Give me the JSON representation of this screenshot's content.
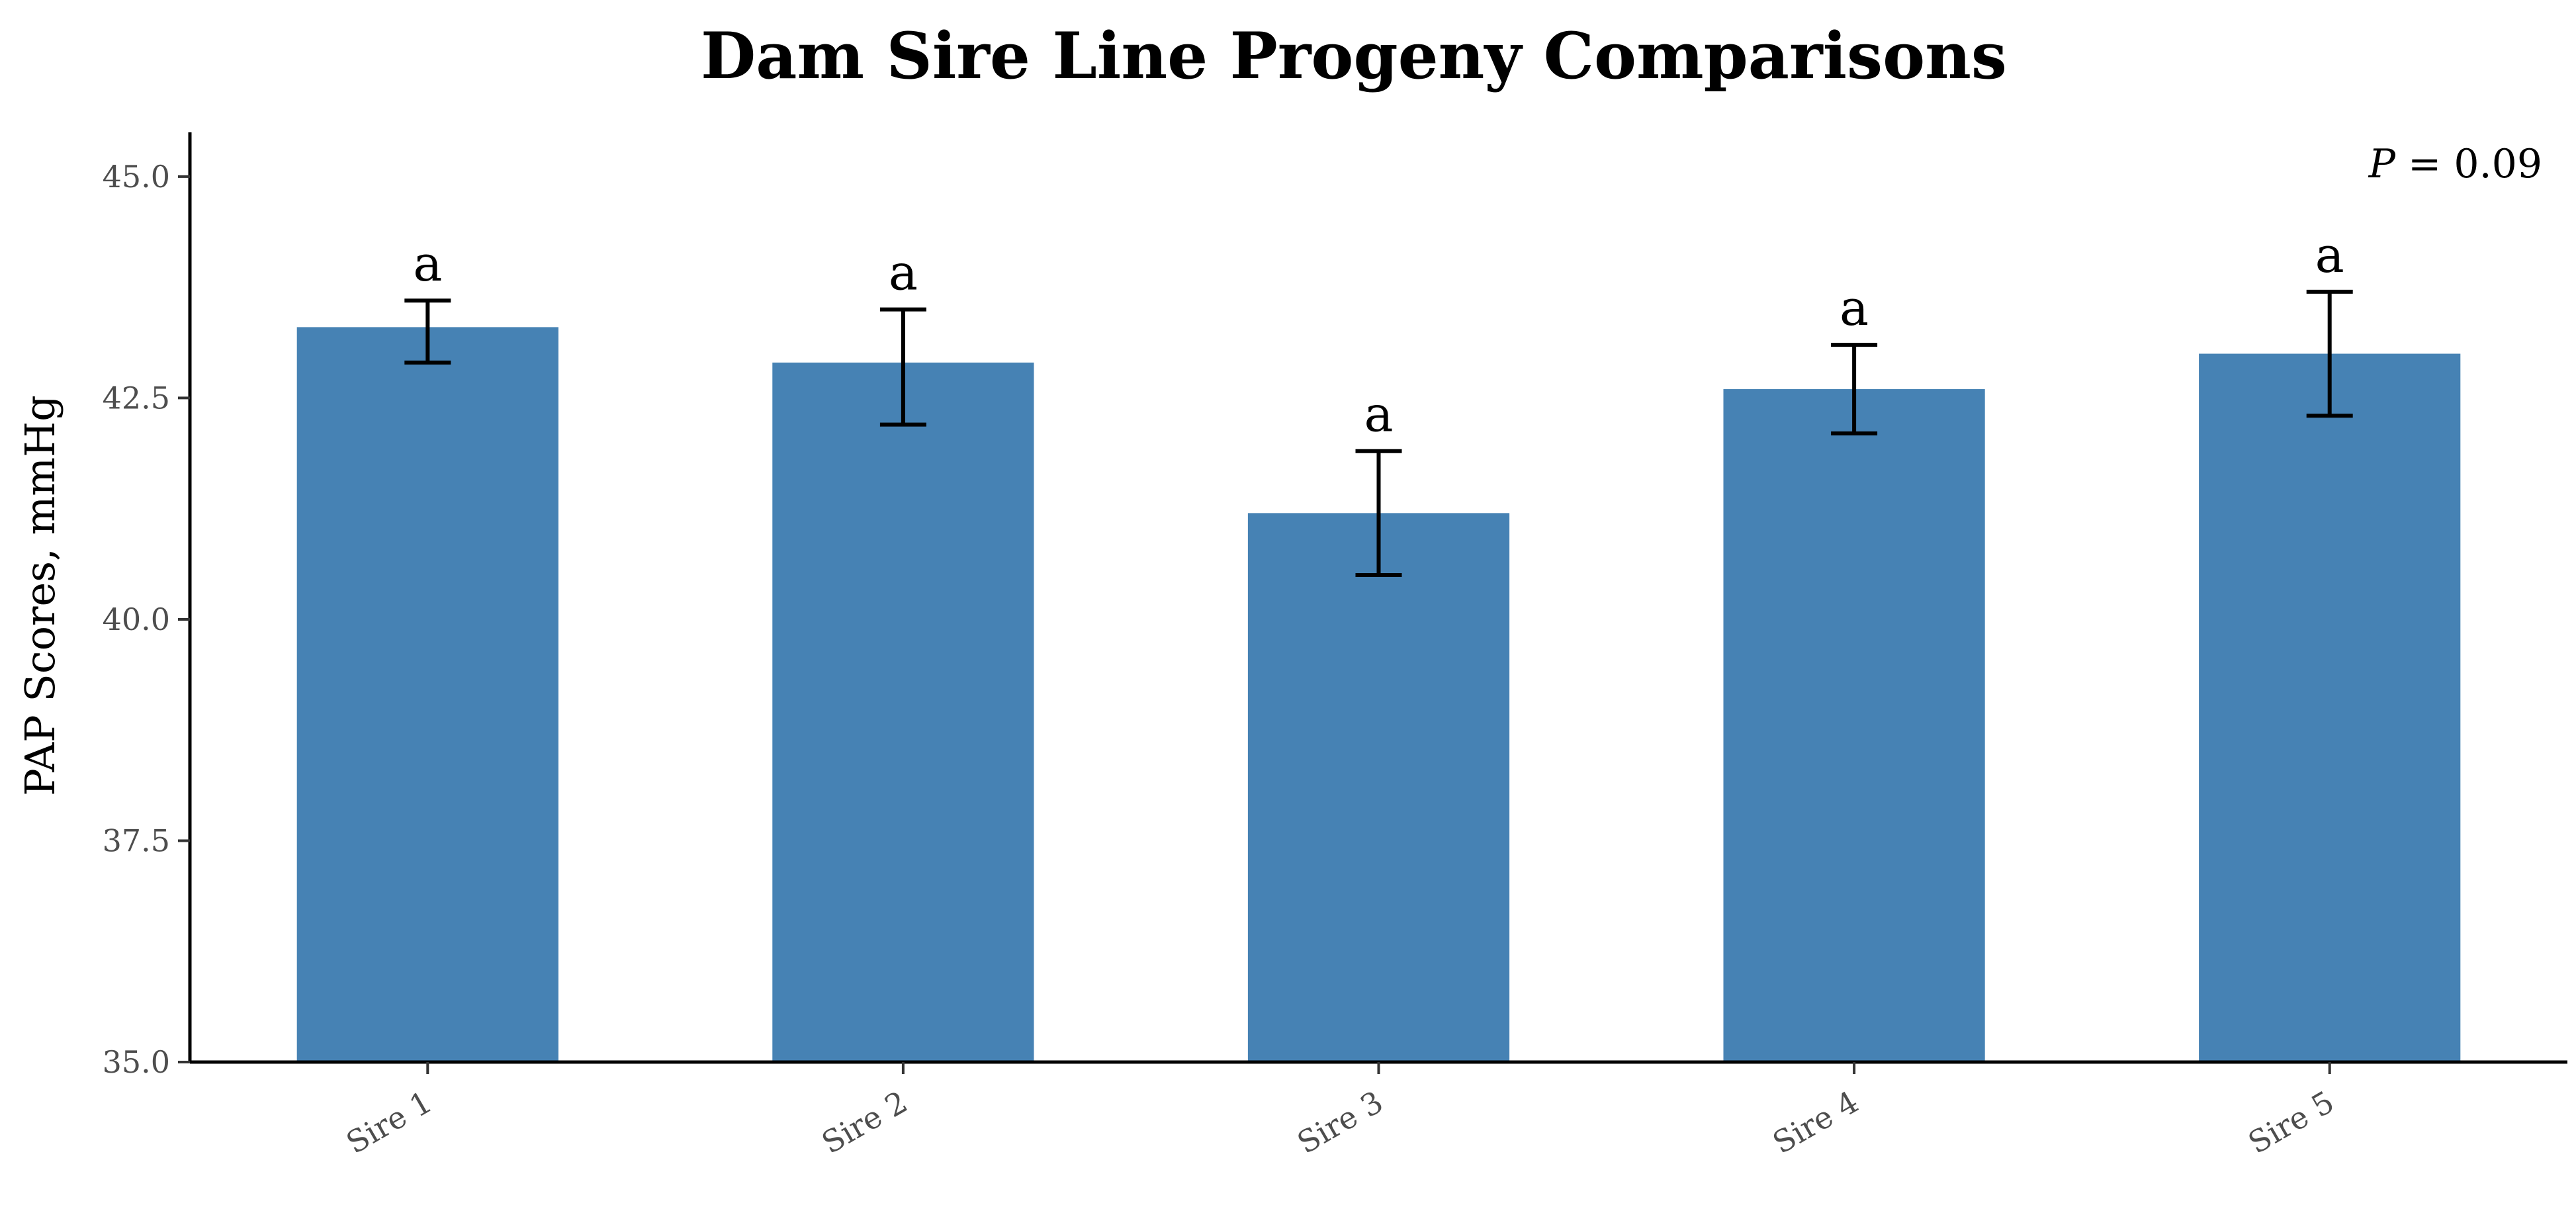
{
  "chart_data": {
    "type": "bar",
    "title": "Dam Sire Line Progeny Comparisons",
    "xlabel": "",
    "ylabel": "PAP Scores, mmHg",
    "categories": [
      "Sire 1",
      "Sire 2",
      "Sire 3",
      "Sire 4",
      "Sire 5"
    ],
    "values": [
      43.3,
      42.9,
      41.2,
      42.6,
      43.0
    ],
    "error_low": [
      42.9,
      42.2,
      40.5,
      42.1,
      42.3
    ],
    "error_high": [
      43.6,
      43.5,
      41.9,
      43.1,
      43.7
    ],
    "significance_labels": [
      "a",
      "a",
      "a",
      "a",
      "a"
    ],
    "ylim": [
      35.0,
      45.5
    ],
    "yticks": [
      35.0,
      37.5,
      40.0,
      42.5,
      45.0
    ],
    "ytick_labels": [
      "35.0",
      "37.5",
      "40.0",
      "42.5",
      "45.0"
    ],
    "annotation": {
      "symbol": "P",
      "text": " = 0.09"
    },
    "grid": false,
    "bar_color": "#4682b4"
  }
}
